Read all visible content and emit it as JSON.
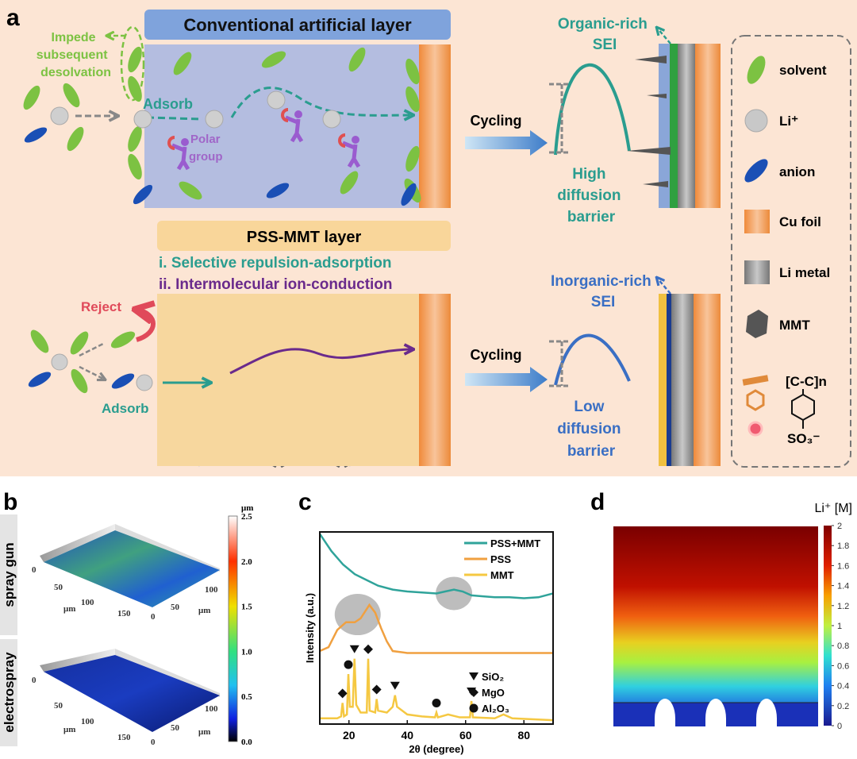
{
  "panel_labels": {
    "a": "a",
    "b": "b",
    "c": "c",
    "d": "d"
  },
  "panel_a": {
    "conventional_title": "Conventional artificial layer",
    "impede": [
      "Impede",
      "subsequent",
      "desolvation"
    ],
    "adsorb_top": "Adsorb",
    "polar_group": [
      "Polar",
      "group"
    ],
    "pss_title": "PSS-MMT layer",
    "mechanism_1": "i. Selective repulsion-adsorption",
    "mechanism_2": "ii. Intermolecular ion-conduction",
    "reject": "Reject",
    "adsorb_bottom": "Adsorb",
    "cycling_top": "Cycling",
    "cycling_bottom": "Cycling",
    "organic_sei": [
      "Organic-rich",
      "SEI"
    ],
    "high_barrier": [
      "High",
      "diffusion",
      "barrier"
    ],
    "inorganic_sei": [
      "Inorganic-rich",
      "SEI"
    ],
    "low_barrier": [
      "Low",
      "diffusion",
      "barrier"
    ],
    "legend": {
      "solvent": "solvent",
      "li": "Li⁺",
      "anion": "anion",
      "cu_foil": "Cu foil",
      "li_metal": "Li metal",
      "mmt": "MMT",
      "pss_formula": "[C-C]n",
      "pss_group": "SO₃⁻"
    },
    "colors": {
      "solvent": "#7cc242",
      "anion": "#1a4fb5",
      "teal": "#2a9d8f",
      "purple": "#6a2a8c",
      "blue_text": "#3a6fc4",
      "reject": "#e04a5a"
    }
  },
  "panel_b": {
    "rows": [
      "spray gun",
      "electrospray"
    ],
    "axis_unit": "μm",
    "axis_ticks_x": [
      "0",
      "50",
      "100",
      "150"
    ],
    "axis_ticks_y": [
      "0",
      "50",
      "100"
    ],
    "colorbar_unit": "μm",
    "colorbar_ticks": [
      "2.5",
      "2.0",
      "1.5",
      "1.0",
      "0.5",
      "0.0"
    ]
  },
  "chart_data": [
    {
      "type": "line",
      "xlabel": "2θ (degree)",
      "ylabel": "Intensity (a.u.)",
      "xlim": [
        10,
        90
      ],
      "ylim": [
        0,
        100
      ],
      "xticks": [
        "20",
        "40",
        "60",
        "80"
      ],
      "legend_position": "top-right",
      "series": [
        {
          "name": "PSS+MMT",
          "color": "#2fa39a",
          "points": [
            [
              10,
              99
            ],
            [
              14,
              90
            ],
            [
              18,
              83
            ],
            [
              22,
              78
            ],
            [
              26,
              75
            ],
            [
              30,
              72
            ],
            [
              35,
              70
            ],
            [
              40,
              69
            ],
            [
              45,
              68.5
            ],
            [
              50,
              68
            ],
            [
              53,
              69
            ],
            [
              56,
              70
            ],
            [
              59,
              69
            ],
            [
              62,
              67
            ],
            [
              66,
              66.5
            ],
            [
              70,
              66
            ],
            [
              75,
              66
            ],
            [
              80,
              65.5
            ],
            [
              85,
              66
            ],
            [
              90,
              68
            ]
          ]
        },
        {
          "name": "PSS",
          "color": "#f0a040",
          "points": [
            [
              10,
              38
            ],
            [
              13,
              40
            ],
            [
              16,
              49
            ],
            [
              19,
              53
            ],
            [
              22,
              53
            ],
            [
              24,
              55
            ],
            [
              27,
              62
            ],
            [
              29,
              58
            ],
            [
              31,
              50
            ],
            [
              33,
              43
            ],
            [
              35,
              38
            ],
            [
              40,
              37
            ],
            [
              50,
              37
            ],
            [
              60,
              37
            ],
            [
              70,
              37
            ],
            [
              80,
              37
            ],
            [
              90,
              37
            ]
          ]
        },
        {
          "name": "MMT",
          "color": "#f5c842",
          "points": [
            [
              10,
              3
            ],
            [
              16,
              3
            ],
            [
              17.3,
              4
            ],
            [
              17.8,
              11
            ],
            [
              18.3,
              4
            ],
            [
              19.3,
              5
            ],
            [
              19.8,
              26
            ],
            [
              20.3,
              9
            ],
            [
              21.3,
              9
            ],
            [
              21.9,
              34
            ],
            [
              22.5,
              10
            ],
            [
              24,
              6
            ],
            [
              26.1,
              6
            ],
            [
              26.6,
              34
            ],
            [
              27.1,
              7
            ],
            [
              29,
              6
            ],
            [
              29.5,
              13
            ],
            [
              30,
              7
            ],
            [
              33,
              6
            ],
            [
              35,
              9
            ],
            [
              35.8,
              15
            ],
            [
              36.5,
              9
            ],
            [
              40,
              5
            ],
            [
              45,
              4
            ],
            [
              49.5,
              3.5
            ],
            [
              50,
              6
            ],
            [
              50.5,
              3.5
            ],
            [
              54,
              5
            ],
            [
              58,
              3.5
            ],
            [
              61.5,
              3.5
            ],
            [
              62,
              12
            ],
            [
              62.5,
              3.5
            ],
            [
              70,
              3
            ],
            [
              73,
              5
            ],
            [
              76,
              3
            ],
            [
              90,
              2
            ]
          ]
        }
      ],
      "annotations": {
        "phase_labels": [
          "SiO₂",
          "MgO",
          "Al₂O₃"
        ],
        "markers": [
          {
            "phase": "MgO",
            "x": 17.8,
            "y": 11
          },
          {
            "phase": "Al₂O₃",
            "x": 19.8,
            "y": 26
          },
          {
            "phase": "SiO₂",
            "x": 21.9,
            "y": 34
          },
          {
            "phase": "MgO",
            "x": 26.6,
            "y": 34
          },
          {
            "phase": "MgO",
            "x": 29.5,
            "y": 13
          },
          {
            "phase": "SiO₂",
            "x": 35.8,
            "y": 15
          },
          {
            "phase": "Al₂O₃",
            "x": 50,
            "y": 6
          },
          {
            "phase": "SiO₂",
            "x": 62,
            "y": 12
          }
        ],
        "highlights": [
          {
            "x": 23,
            "y": 57
          },
          {
            "x": 56,
            "y": 68
          }
        ]
      }
    },
    {
      "type": "heatmap",
      "title": "Li⁺ [M]",
      "colorbar_range": [
        0,
        2
      ],
      "colorbar_ticks": [
        "2",
        "1.8",
        "1.6",
        "1.4",
        "1.2",
        "1",
        "0.8",
        "0.6",
        "0.4",
        "0.2",
        "0"
      ],
      "description_values": {
        "top_concentration": 2,
        "bottom_concentration": 0.1
      }
    }
  ]
}
